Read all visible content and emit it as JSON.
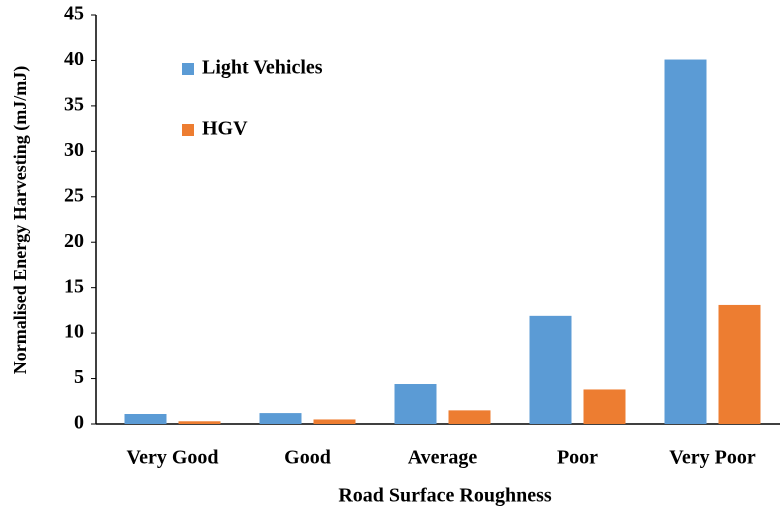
{
  "chart_data": {
    "type": "bar",
    "x_label": "Road Surface Roughness",
    "y_label": "Normalised Energy Harvesting (mJ/mJ)",
    "categories": [
      "Very Good",
      "Good",
      "Average",
      "Poor",
      "Very Poor"
    ],
    "series": [
      {
        "name": "Light Vehicles",
        "color": "#5b9bd5",
        "values": [
          1.1,
          1.2,
          4.4,
          11.9,
          40.1
        ]
      },
      {
        "name": "HGV",
        "color": "#ed7d31",
        "values": [
          0.3,
          0.5,
          1.5,
          3.8,
          13.1
        ]
      }
    ],
    "ylim": [
      0,
      45
    ],
    "yticks": [
      0,
      5,
      10,
      15,
      20,
      25,
      30,
      35,
      40,
      45
    ],
    "grid": false,
    "legend": "top-left"
  }
}
